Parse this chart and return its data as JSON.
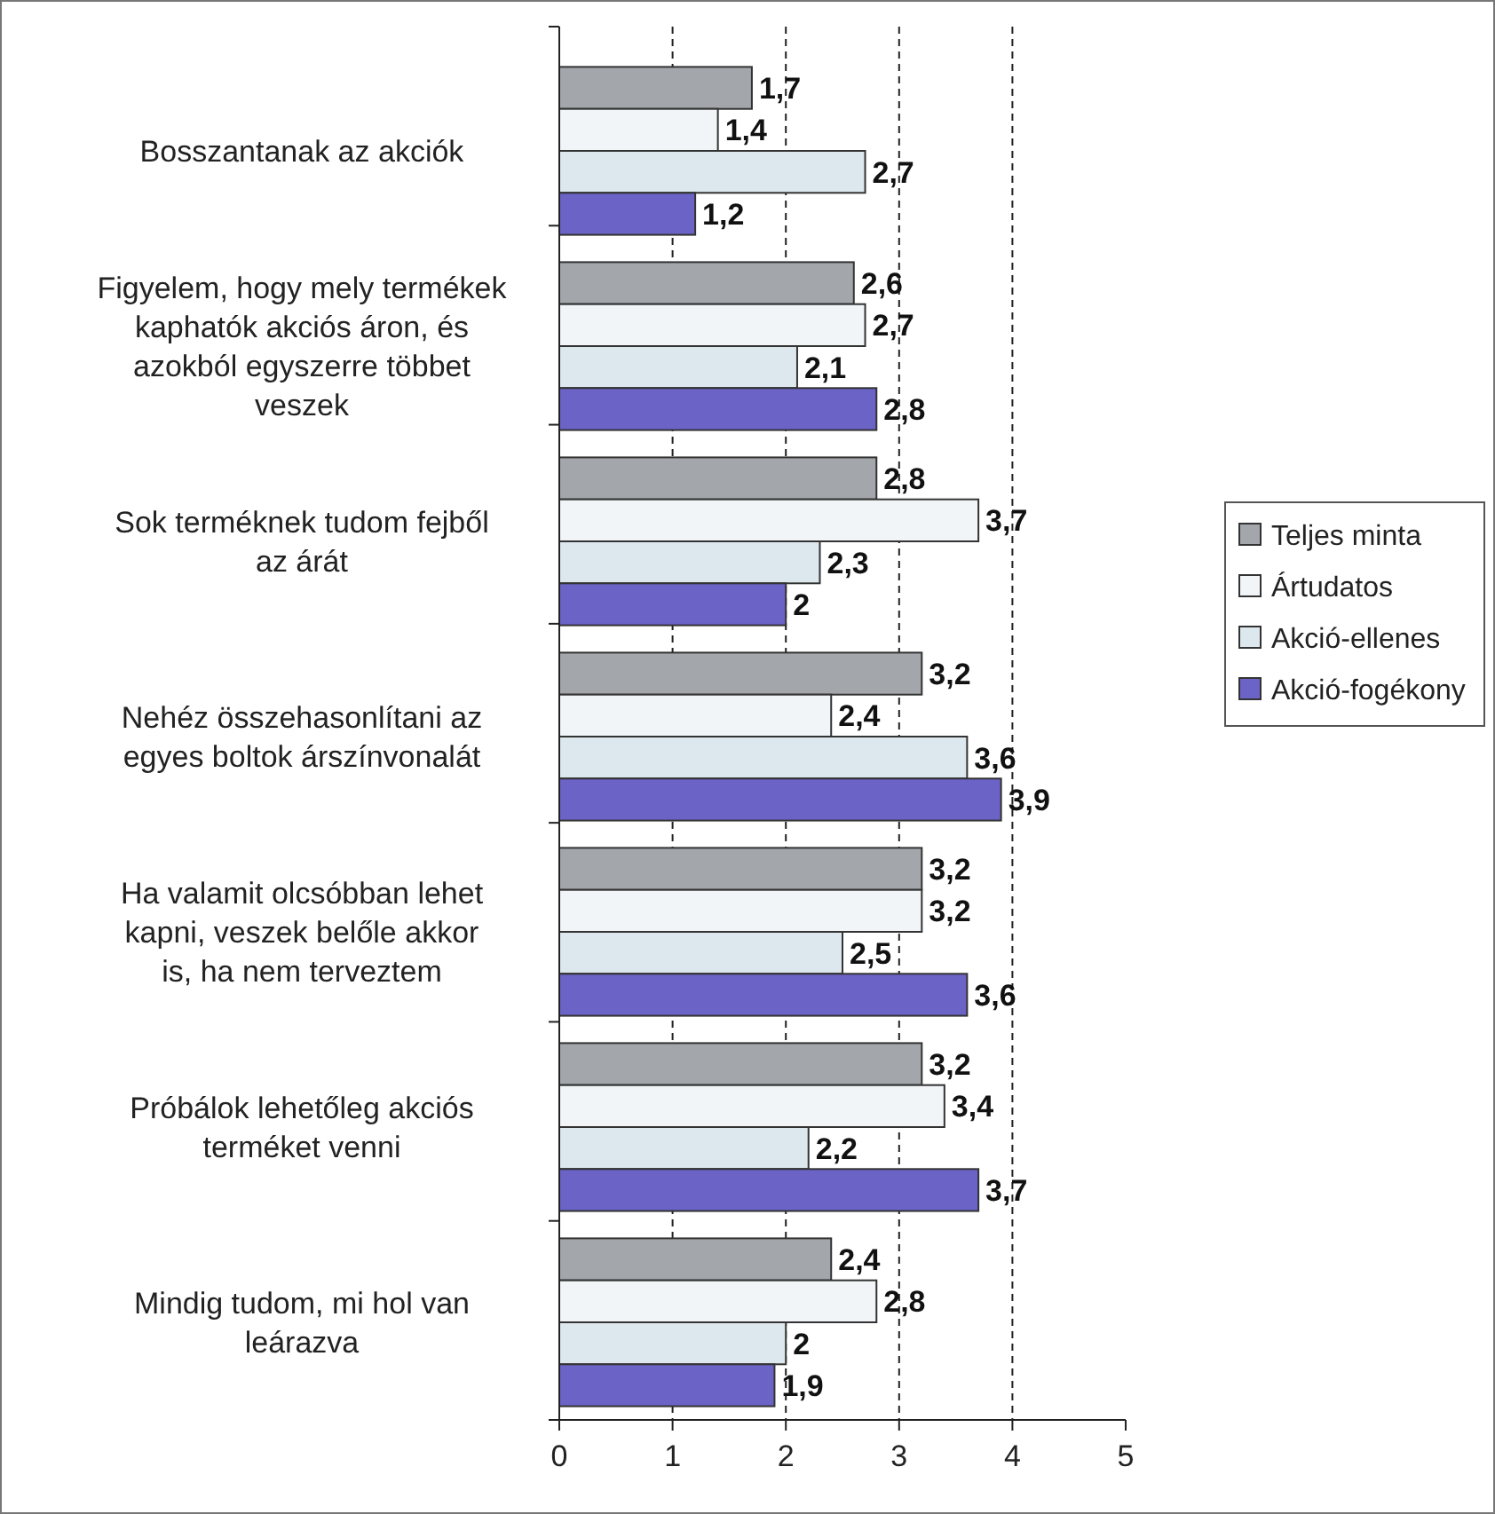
{
  "chart_data": {
    "type": "bar",
    "orientation": "horizontal",
    "categories": [
      "Bosszantanak az akciók",
      "Figyelem, hogy mely termékek kaphatók akciós áron, és azokból egyszerre többet veszek",
      "Sok terméknek tudom fejből az árát",
      "Nehéz összehasonlítani az egyes boltok árszínvonalát",
      "Ha valamit olcsóbban lehet kapni, veszek belőle akkor is, ha nem terveztem",
      "Próbálok lehetőleg akciós terméket venni",
      "Mindig tudom, mi hol van leárazva"
    ],
    "series": [
      {
        "name": "Teljes minta",
        "color": "#a3a7ab",
        "values": [
          1.7,
          2.6,
          2.8,
          3.2,
          3.2,
          3.2,
          2.4
        ],
        "value_labels": [
          "1,7",
          "2,6",
          "2,8",
          "3,2",
          "3,2",
          "3,2",
          "2,4"
        ]
      },
      {
        "name": "Ártudatos",
        "color": "#f1f5f7",
        "values": [
          1.4,
          2.7,
          3.7,
          2.4,
          3.2,
          3.4,
          2.8
        ],
        "value_labels": [
          "1,4",
          "2,7",
          "3,7",
          "2,4",
          "3,2",
          "3,4",
          "2,8"
        ]
      },
      {
        "name": "Akció-ellenes",
        "color": "#dce8ee",
        "values": [
          2.7,
          2.1,
          2.3,
          3.6,
          2.5,
          2.2,
          2
        ],
        "value_labels": [
          "2,7",
          "2,1",
          "2,3",
          "3,6",
          "2,5",
          "2,2",
          "2"
        ]
      },
      {
        "name": "Akció-fogékony",
        "color": "#6b63c6",
        "values": [
          1.2,
          2.8,
          2,
          3.9,
          3.6,
          3.7,
          1.9
        ],
        "value_labels": [
          "1,2",
          "2,8",
          "2",
          "3,9",
          "3,6",
          "3,7",
          "1,9"
        ]
      }
    ],
    "xlim": [
      0,
      5
    ],
    "xticks": [
      0,
      1,
      2,
      3,
      4,
      5
    ],
    "grid": "x",
    "legend": "right"
  }
}
